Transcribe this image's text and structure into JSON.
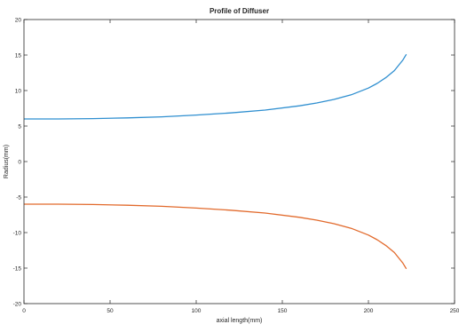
{
  "chart_data": {
    "type": "line",
    "title": "Profile of Diffuser",
    "xlabel": "axial length(mm)",
    "ylabel": "Radius(mm)",
    "xlim": [
      0,
      250
    ],
    "ylim": [
      -20,
      20
    ],
    "xticks": [
      0,
      50,
      100,
      150,
      200,
      250
    ],
    "yticks": [
      -20,
      -15,
      -10,
      -5,
      0,
      5,
      10,
      15,
      20
    ],
    "grid": false,
    "legend": "none",
    "series": [
      {
        "color": "#2f8fd0",
        "x": [
          0,
          20,
          40,
          60,
          80,
          100,
          120,
          140,
          160,
          170,
          180,
          190,
          200,
          205,
          210,
          215,
          220,
          222
        ],
        "y": [
          6.0,
          6.0,
          6.05,
          6.15,
          6.3,
          6.55,
          6.85,
          7.25,
          7.85,
          8.25,
          8.75,
          9.4,
          10.35,
          11.0,
          11.8,
          12.8,
          14.3,
          15.1
        ]
      },
      {
        "color": "#e26a2c",
        "x": [
          0,
          20,
          40,
          60,
          80,
          100,
          120,
          140,
          160,
          170,
          180,
          190,
          200,
          205,
          210,
          215,
          220,
          222
        ],
        "y": [
          -6.0,
          -6.0,
          -6.05,
          -6.15,
          -6.3,
          -6.55,
          -6.85,
          -7.25,
          -7.85,
          -8.25,
          -8.75,
          -9.4,
          -10.35,
          -11.0,
          -11.8,
          -12.8,
          -14.3,
          -15.1
        ]
      }
    ]
  }
}
